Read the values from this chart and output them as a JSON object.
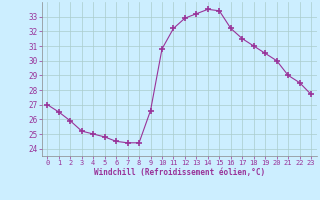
{
  "hours": [
    0,
    1,
    2,
    3,
    4,
    5,
    6,
    7,
    8,
    9,
    10,
    11,
    12,
    13,
    14,
    15,
    16,
    17,
    18,
    19,
    20,
    21,
    22,
    23
  ],
  "values": [
    27.0,
    26.5,
    25.9,
    25.2,
    25.0,
    24.8,
    24.5,
    24.4,
    24.4,
    26.6,
    30.8,
    32.2,
    32.9,
    33.2,
    33.5,
    33.4,
    32.2,
    31.5,
    31.0,
    30.5,
    30.0,
    29.0,
    28.5,
    27.7
  ],
  "line_color": "#993399",
  "marker": "+",
  "marker_size": 4,
  "bg_color": "#cceeff",
  "grid_color": "#aacccc",
  "xlabel": "Windchill (Refroidissement éolien,°C)",
  "xlabel_color": "#993399",
  "ylim": [
    23.5,
    34.0
  ],
  "yticks": [
    24,
    25,
    26,
    27,
    28,
    29,
    30,
    31,
    32,
    33
  ],
  "xticks": [
    0,
    1,
    2,
    3,
    4,
    5,
    6,
    7,
    8,
    9,
    10,
    11,
    12,
    13,
    14,
    15,
    16,
    17,
    18,
    19,
    20,
    21,
    22,
    23
  ],
  "font_family": "monospace"
}
